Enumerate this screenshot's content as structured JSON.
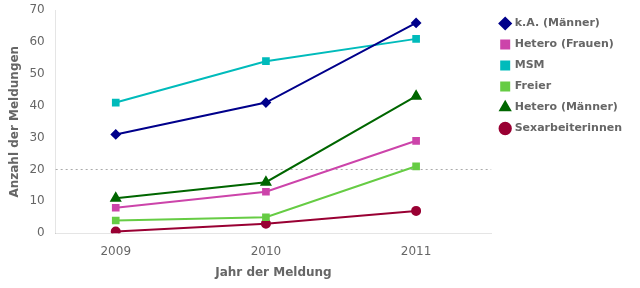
{
  "chart_data": {
    "type": "line",
    "x": [
      2009,
      2010,
      2011
    ],
    "series": [
      {
        "name": "k.A. (Männer)",
        "color": "#00008B",
        "marker": "diamond",
        "values": [
          31,
          41,
          66
        ]
      },
      {
        "name": "Hetero (Frauen)",
        "color": "#CC44AA",
        "marker": "square",
        "values": [
          8,
          13,
          29
        ]
      },
      {
        "name": "MSM",
        "color": "#00BBBB",
        "marker": "square",
        "values": [
          41,
          54,
          61
        ]
      },
      {
        "name": "Freier",
        "color": "#66CC44",
        "marker": "square",
        "values": [
          4,
          5,
          21
        ]
      },
      {
        "name": "Hetero (Männer)",
        "color": "#006600",
        "marker": "triangle",
        "values": [
          11,
          16,
          43
        ]
      },
      {
        "name": "Sexarbeiterinnen",
        "color": "#990033",
        "marker": "circle",
        "values": [
          0.5,
          3,
          7
        ]
      }
    ],
    "x_label": "Jahr der Meldung",
    "y_label": "Anzahl der Meldungen",
    "xlim": [
      2008.6,
      2011.5
    ],
    "xticks": [
      2009,
      2010,
      2011
    ],
    "ylim": [
      0,
      70
    ],
    "yticks": [
      0,
      10,
      20,
      30,
      40,
      50,
      60,
      70
    ],
    "hlines": [
      20
    ],
    "grid": false,
    "legend": "right"
  }
}
